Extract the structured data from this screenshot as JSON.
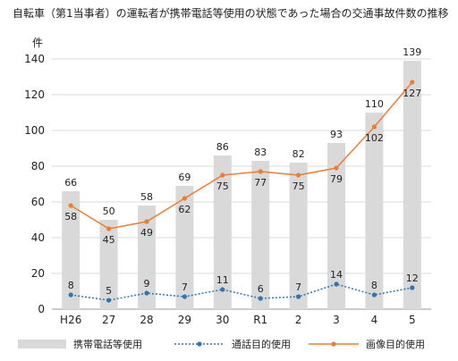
{
  "chart_data": {
    "type": "bar",
    "title": "自転車（第1当事者）の運転者が携帯電話等使用の状態であった場合の交通事故件数の推移",
    "ylabel": "件",
    "xlabel": "",
    "categories": [
      "H26",
      "27",
      "28",
      "29",
      "30",
      "R1",
      "2",
      "3",
      "4",
      "5"
    ],
    "ylim": [
      0,
      140
    ],
    "yticks": [
      0,
      20,
      40,
      60,
      80,
      100,
      120,
      140
    ],
    "grid": true,
    "legend_position": "bottom",
    "series": [
      {
        "name": "携帯電話等使用",
        "kind": "bar",
        "color": "#d9d9d9",
        "values": [
          66,
          50,
          58,
          69,
          86,
          83,
          82,
          93,
          110,
          139
        ]
      },
      {
        "name": "通話目的使用",
        "kind": "line-dotted",
        "color": "#2e75b6",
        "values": [
          8,
          5,
          9,
          7,
          11,
          6,
          7,
          14,
          8,
          12
        ]
      },
      {
        "name": "画像目的使用",
        "kind": "line",
        "color": "#ed7d31",
        "values": [
          58,
          45,
          49,
          62,
          75,
          77,
          75,
          79,
          102,
          127
        ]
      }
    ]
  }
}
